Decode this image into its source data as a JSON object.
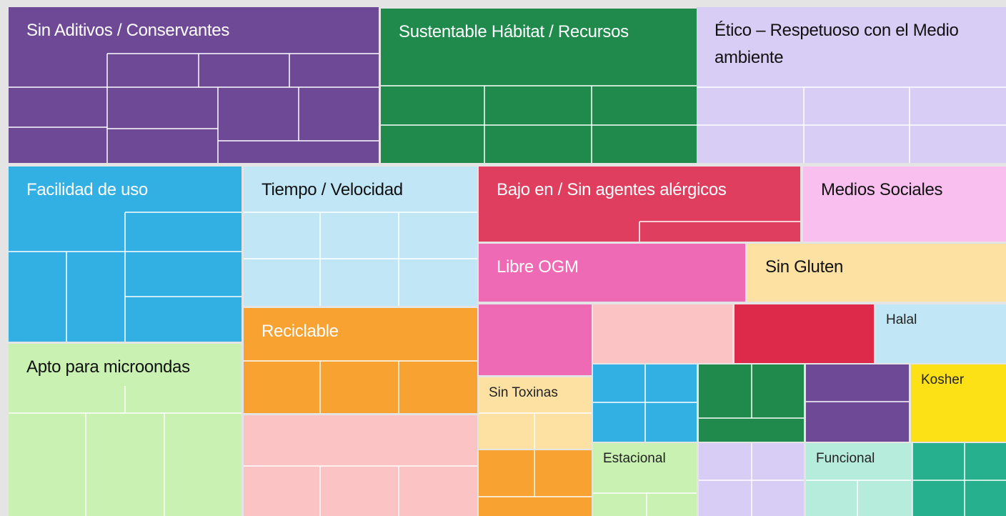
{
  "tiles": [
    {
      "label": "Sin Aditivos / Conservantes"
    },
    {
      "label": "Sustentable Hábitat / Recursos"
    },
    {
      "label": "Ético – Respetuoso con el Medio ambiente"
    },
    {
      "label": "Facilidad de uso"
    },
    {
      "label": "Tiempo / Velocidad"
    },
    {
      "label": "Bajo en / Sin agentes alérgicos"
    },
    {
      "label": "Medios Sociales"
    },
    {
      "label": "Libre OGM"
    },
    {
      "label": "Sin Gluten"
    },
    {
      "label": "Apto para microondas"
    },
    {
      "label": "Reciclable"
    },
    {
      "label": "Sin Toxinas"
    },
    {
      "label": "Halal"
    },
    {
      "label": "Kosher"
    },
    {
      "label": "Estacional"
    },
    {
      "label": "Funcional"
    }
  ]
}
